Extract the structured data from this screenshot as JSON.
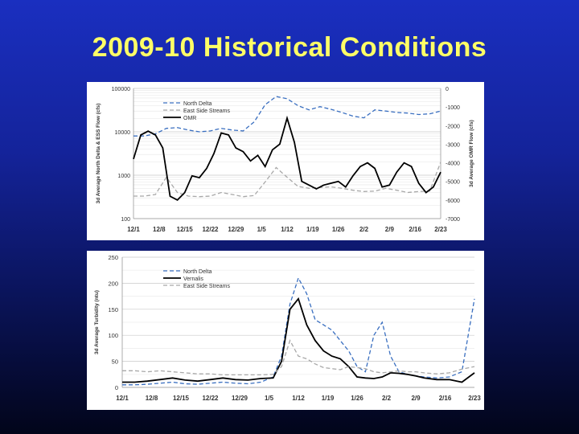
{
  "title": "2009-10 Historical Conditions",
  "colors": {
    "north_delta": "#3a6fc0",
    "east_side": "#a8a8a8",
    "omr": "#000000",
    "vernalis": "#000000",
    "title": "#ffff66"
  },
  "chart_data": [
    {
      "type": "line",
      "x_ticks": [
        "12/1",
        "12/8",
        "12/15",
        "12/22",
        "12/29",
        "1/5",
        "1/12",
        "1/19",
        "1/26",
        "2/2",
        "2/9",
        "2/16",
        "2/23"
      ],
      "ylabel": "3d Average North Delta & ESS Flow (cfs)",
      "y2label": "3d Average OMR Flow (cfs)",
      "y_scale": "log",
      "ylim": [
        100,
        100000
      ],
      "y_ticks": [
        "100000",
        "10000",
        "1000",
        "100"
      ],
      "y2lim": [
        -7000,
        0
      ],
      "y2_ticks": [
        "0",
        "-1000",
        "-2000",
        "-3000",
        "-4000",
        "-5000",
        "-6000",
        "-7000"
      ],
      "grid": true,
      "legend_position": "top-left",
      "series": [
        {
          "name": "North Delta",
          "axis": "left",
          "style": "dashed",
          "color": "#3a6fc0",
          "x": [
            0,
            3,
            6,
            9,
            12,
            15,
            18,
            21,
            24,
            27,
            30,
            33,
            36,
            39,
            42,
            45,
            48,
            51,
            54,
            57,
            60,
            63,
            66,
            69,
            72,
            75,
            78,
            81,
            84
          ],
          "y": [
            8000,
            8000,
            9000,
            12000,
            12500,
            11000,
            10000,
            10500,
            12000,
            11000,
            10500,
            17000,
            42000,
            65000,
            58000,
            40000,
            32000,
            38000,
            33000,
            28000,
            23000,
            21000,
            32000,
            30000,
            28000,
            27000,
            25000,
            26000,
            30000
          ]
        },
        {
          "name": "East Side Streams",
          "axis": "left",
          "style": "dashed",
          "color": "#a8a8a8",
          "x": [
            0,
            3,
            6,
            9,
            12,
            15,
            18,
            21,
            24,
            27,
            30,
            33,
            36,
            39,
            42,
            45,
            48,
            51,
            54,
            57,
            60,
            63,
            66,
            69,
            72,
            75,
            78,
            81,
            84
          ],
          "y": [
            330,
            330,
            360,
            900,
            400,
            330,
            320,
            330,
            400,
            360,
            320,
            340,
            700,
            1500,
            900,
            550,
            500,
            520,
            540,
            500,
            450,
            420,
            430,
            500,
            450,
            400,
            420,
            430,
            2000
          ]
        },
        {
          "name": "OMR",
          "axis": "right",
          "style": "solid",
          "color": "#000000",
          "x": [
            0,
            2,
            4,
            6,
            8,
            10,
            12,
            14,
            16,
            18,
            20,
            22,
            24,
            26,
            28,
            30,
            32,
            34,
            36,
            38,
            40,
            42,
            44,
            46,
            48,
            50,
            52,
            54,
            56,
            58,
            60,
            62,
            64,
            66,
            68,
            70,
            72,
            74,
            76,
            78,
            80,
            82,
            84
          ],
          "y": [
            -3800,
            -2500,
            -2300,
            -2500,
            -3200,
            -5800,
            -6000,
            -5600,
            -4700,
            -4800,
            -4300,
            -3500,
            -2400,
            -2500,
            -3200,
            -3400,
            -3900,
            -3600,
            -4200,
            -3300,
            -3000,
            -1600,
            -2900,
            -5000,
            -5200,
            -5400,
            -5200,
            -5100,
            -5000,
            -5300,
            -4700,
            -4200,
            -4000,
            -4300,
            -5300,
            -5200,
            -4500,
            -4000,
            -4200,
            -5100,
            -5600,
            -5300,
            -4500
          ]
        }
      ]
    },
    {
      "type": "line",
      "x_ticks": [
        "12/1",
        "12/8",
        "12/15",
        "12/22",
        "12/29",
        "1/5",
        "1/12",
        "1/19",
        "1/26",
        "2/2",
        "2/9",
        "2/16",
        "2/23"
      ],
      "ylabel": "3d Average Turbidity (ntu)",
      "ylim": [
        0,
        250
      ],
      "y_ticks": [
        "0",
        "50",
        "100",
        "150",
        "200",
        "250"
      ],
      "grid": true,
      "legend_position": "top-left",
      "series": [
        {
          "name": "North Delta",
          "style": "dashed",
          "color": "#3a6fc0",
          "x": [
            0,
            3,
            6,
            9,
            12,
            15,
            18,
            21,
            24,
            27,
            30,
            33,
            36,
            38,
            40,
            42,
            44,
            46,
            48,
            50,
            52,
            54,
            56,
            58,
            60,
            62,
            64,
            66,
            68,
            70,
            72,
            75,
            78,
            81,
            84
          ],
          "y": [
            5,
            5,
            6,
            8,
            10,
            7,
            6,
            8,
            10,
            8,
            7,
            10,
            20,
            60,
            160,
            210,
            180,
            130,
            120,
            110,
            90,
            70,
            40,
            30,
            100,
            125,
            60,
            30,
            25,
            22,
            20,
            18,
            20,
            30,
            170
          ]
        },
        {
          "name": "Vernalis",
          "style": "solid",
          "color": "#000000",
          "x": [
            0,
            3,
            6,
            9,
            12,
            15,
            18,
            21,
            24,
            27,
            30,
            33,
            36,
            38,
            40,
            42,
            44,
            46,
            48,
            50,
            52,
            54,
            56,
            58,
            60,
            62,
            64,
            66,
            68,
            70,
            72,
            75,
            78,
            81,
            84
          ],
          "y": [
            10,
            10,
            12,
            15,
            18,
            14,
            12,
            15,
            18,
            15,
            14,
            17,
            18,
            50,
            150,
            170,
            120,
            90,
            70,
            60,
            55,
            40,
            20,
            18,
            17,
            20,
            28,
            27,
            25,
            22,
            18,
            15,
            15,
            10,
            28
          ]
        },
        {
          "name": "East Side Streams",
          "style": "dashed",
          "color": "#a8a8a8",
          "x": [
            0,
            3,
            6,
            9,
            12,
            15,
            18,
            21,
            24,
            27,
            30,
            33,
            36,
            38,
            40,
            42,
            44,
            46,
            48,
            50,
            52,
            54,
            56,
            58,
            60,
            62,
            64,
            66,
            68,
            70,
            72,
            75,
            78,
            81,
            84
          ],
          "y": [
            32,
            32,
            30,
            32,
            30,
            28,
            26,
            26,
            24,
            24,
            24,
            24,
            25,
            40,
            90,
            60,
            55,
            45,
            38,
            36,
            34,
            40,
            38,
            36,
            30,
            28,
            30,
            32,
            30,
            30,
            28,
            26,
            28,
            35,
            40
          ]
        }
      ]
    }
  ]
}
